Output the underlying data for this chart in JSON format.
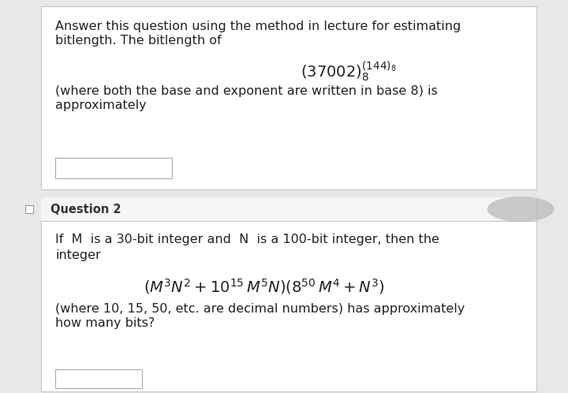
{
  "bg_color": "#e8e8e8",
  "card_bg": "#ffffff",
  "card_border": "#c8c8c8",
  "text_color": "#222222",
  "header_text_color": "#333333",
  "input_bg": "#ffffff",
  "input_border": "#aaaaaa",
  "blur_color": "#bbbbbb",
  "line1": "Answer this question using the method in lecture for estimating",
  "line2": "bitlength. The bitlength of",
  "line3": "(where both the base and exponent are written in base 8) is",
  "line4": "approximately",
  "math1": "$(37002)_8^{(144)_8}$",
  "q2_title": "Question 2",
  "q2_line1": "If  M  is a 30-bit integer and  N  is a 100-bit integer, then the",
  "q2_line2": "integer",
  "math2": "$(M^3N^2 + 10^{15}\\,M^5N)(8^{50}\\,M^4 + N^3)$",
  "q2_line4": "(where 10, 15, 50, etc. are decimal numbers) has approximately",
  "q2_line5": "how many bits?",
  "font_body": 11.5,
  "font_math1": 14,
  "font_math2": 14,
  "font_q2_title": 10.5
}
